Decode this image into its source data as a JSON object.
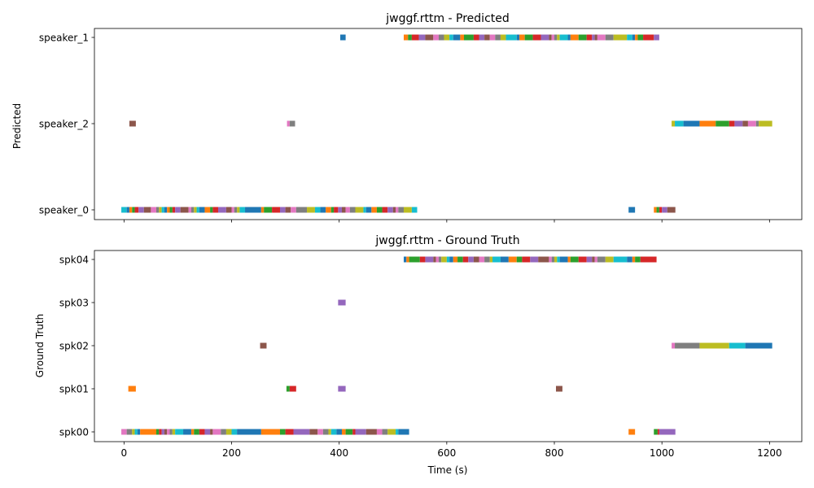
{
  "palette": [
    "#1f77b4",
    "#ff7f0e",
    "#2ca02c",
    "#d62728",
    "#9467bd",
    "#8c564b",
    "#e377c2",
    "#7f7f7f",
    "#bcbd22",
    "#17becf"
  ],
  "chart_data": [
    {
      "type": "timeline",
      "title": "jwggf.rttm - Predicted",
      "xlabel": "",
      "ylabel": "Predicted",
      "xlim": [
        -55,
        1260
      ],
      "xticks": [
        0,
        200,
        400,
        600,
        800,
        1000,
        1200
      ],
      "show_xtick_labels": false,
      "categories": [
        "speaker_0",
        "speaker_2",
        "speaker_1"
      ],
      "segments": [
        {
          "row": "speaker_1",
          "spans": [
            [
              402,
              412
            ],
            [
              520,
              528
            ],
            [
              528,
              535
            ],
            [
              535,
              548
            ],
            [
              548,
              560
            ],
            [
              560,
              575
            ],
            [
              575,
              585
            ],
            [
              585,
              595
            ],
            [
              595,
              605
            ],
            [
              605,
              612
            ],
            [
              612,
              625
            ],
            [
              625,
              632
            ],
            [
              632,
              650
            ],
            [
              650,
              660
            ],
            [
              660,
              670
            ],
            [
              670,
              680
            ],
            [
              680,
              690
            ],
            [
              690,
              700
            ],
            [
              700,
              710
            ],
            [
              710,
              730
            ],
            [
              730,
              735
            ],
            [
              735,
              745
            ],
            [
              745,
              760
            ],
            [
              760,
              775
            ],
            [
              775,
              790
            ],
            [
              790,
              795
            ],
            [
              795,
              800
            ],
            [
              800,
              805
            ],
            [
              805,
              810
            ],
            [
              810,
              825
            ],
            [
              825,
              830
            ],
            [
              830,
              845
            ],
            [
              845,
              860
            ],
            [
              860,
              870
            ],
            [
              870,
              875
            ],
            [
              875,
              880
            ],
            [
              880,
              895
            ],
            [
              895,
              910
            ],
            [
              910,
              935
            ],
            [
              935,
              945
            ],
            [
              945,
              950
            ],
            [
              950,
              955
            ],
            [
              955,
              965
            ],
            [
              965,
              985
            ],
            [
              985,
              995
            ]
          ]
        },
        {
          "row": "speaker_2",
          "spans": [
            [
              10,
              22
            ],
            [
              303,
              308
            ],
            [
              308,
              318
            ],
            [
              1018,
              1024
            ],
            [
              1024,
              1040
            ],
            [
              1040,
              1070
            ],
            [
              1070,
              1100
            ],
            [
              1100,
              1125
            ],
            [
              1125,
              1135
            ],
            [
              1135,
              1150
            ],
            [
              1150,
              1160
            ],
            [
              1160,
              1175
            ],
            [
              1175,
              1180
            ],
            [
              1180,
              1205
            ]
          ]
        },
        {
          "row": "speaker_0",
          "spans": [
            [
              -5,
              5
            ],
            [
              5,
              10
            ],
            [
              10,
              15
            ],
            [
              15,
              20
            ],
            [
              20,
              27
            ],
            [
              27,
              37
            ],
            [
              37,
              50
            ],
            [
              50,
              60
            ],
            [
              60,
              65
            ],
            [
              65,
              70
            ],
            [
              70,
              75
            ],
            [
              75,
              80
            ],
            [
              80,
              85
            ],
            [
              85,
              90
            ],
            [
              90,
              95
            ],
            [
              95,
              105
            ],
            [
              105,
              120
            ],
            [
              120,
              125
            ],
            [
              125,
              130
            ],
            [
              130,
              135
            ],
            [
              135,
              140
            ],
            [
              140,
              150
            ],
            [
              150,
              160
            ],
            [
              160,
              165
            ],
            [
              165,
              175
            ],
            [
              175,
              190
            ],
            [
              190,
              200
            ],
            [
              200,
              205
            ],
            [
              205,
              210
            ],
            [
              210,
              215
            ],
            [
              215,
              225
            ],
            [
              225,
              255
            ],
            [
              255,
              260
            ],
            [
              260,
              275
            ],
            [
              275,
              290
            ],
            [
              290,
              300
            ],
            [
              300,
              310
            ],
            [
              310,
              320
            ],
            [
              320,
              340
            ],
            [
              340,
              355
            ],
            [
              355,
              365
            ],
            [
              365,
              375
            ],
            [
              375,
              385
            ],
            [
              385,
              390
            ],
            [
              390,
              398
            ],
            [
              398,
              405
            ],
            [
              405,
              412
            ],
            [
              412,
              420
            ],
            [
              420,
              430
            ],
            [
              430,
              445
            ],
            [
              445,
              450
            ],
            [
              450,
              460
            ],
            [
              460,
              470
            ],
            [
              470,
              480
            ],
            [
              480,
              490
            ],
            [
              490,
              500
            ],
            [
              500,
              505
            ],
            [
              505,
              510
            ],
            [
              510,
              520
            ],
            [
              520,
              535
            ],
            [
              535,
              545
            ],
            [
              938,
              950
            ],
            [
              985,
              990
            ],
            [
              990,
              995
            ],
            [
              995,
              1000
            ],
            [
              1000,
              1010
            ],
            [
              1010,
              1025
            ]
          ]
        }
      ]
    },
    {
      "type": "timeline",
      "title": "jwggf.rttm - Ground Truth",
      "xlabel": "Time (s)",
      "ylabel": "Ground Truth",
      "xlim": [
        -55,
        1260
      ],
      "xticks": [
        0,
        200,
        400,
        600,
        800,
        1000,
        1200
      ],
      "show_xtick_labels": true,
      "categories": [
        "spk00",
        "spk01",
        "spk02",
        "spk03",
        "spk04"
      ],
      "segments": [
        {
          "row": "spk04",
          "spans": [
            [
              520,
              525
            ],
            [
              525,
              530
            ],
            [
              530,
              550
            ],
            [
              550,
              560
            ],
            [
              560,
              575
            ],
            [
              575,
              580
            ],
            [
              580,
              585
            ],
            [
              585,
              590
            ],
            [
              590,
              600
            ],
            [
              600,
              605
            ],
            [
              605,
              612
            ],
            [
              612,
              620
            ],
            [
              620,
              630
            ],
            [
              630,
              640
            ],
            [
              640,
              650
            ],
            [
              650,
              660
            ],
            [
              660,
              670
            ],
            [
              670,
              680
            ],
            [
              680,
              685
            ],
            [
              685,
              700
            ],
            [
              700,
              715
            ],
            [
              715,
              730
            ],
            [
              730,
              740
            ],
            [
              740,
              755
            ],
            [
              755,
              770
            ],
            [
              770,
              790
            ],
            [
              790,
              795
            ],
            [
              795,
              800
            ],
            [
              800,
              805
            ],
            [
              805,
              810
            ],
            [
              810,
              825
            ],
            [
              825,
              830
            ],
            [
              830,
              845
            ],
            [
              845,
              860
            ],
            [
              860,
              870
            ],
            [
              870,
              875
            ],
            [
              875,
              880
            ],
            [
              880,
              895
            ],
            [
              895,
              910
            ],
            [
              910,
              935
            ],
            [
              935,
              945
            ],
            [
              945,
              950
            ],
            [
              950,
              960
            ],
            [
              960,
              990
            ]
          ]
        },
        {
          "row": "spk03",
          "spans": [
            [
              398,
              412
            ]
          ]
        },
        {
          "row": "spk02",
          "spans": [
            [
              253,
              265
            ],
            [
              1018,
              1024
            ],
            [
              1024,
              1070
            ],
            [
              1070,
              1125
            ],
            [
              1125,
              1155
            ],
            [
              1155,
              1205
            ]
          ]
        },
        {
          "row": "spk01",
          "spans": [
            [
              8,
              22
            ],
            [
              302,
              308
            ],
            [
              308,
              320
            ],
            [
              398,
              412
            ],
            [
              803,
              815
            ]
          ]
        },
        {
          "row": "spk00",
          "spans": [
            [
              -5,
              5
            ],
            [
              5,
              15
            ],
            [
              15,
              20
            ],
            [
              20,
              25
            ],
            [
              25,
              30
            ],
            [
              30,
              60
            ],
            [
              60,
              65
            ],
            [
              65,
              70
            ],
            [
              70,
              75
            ],
            [
              75,
              80
            ],
            [
              80,
              85
            ],
            [
              85,
              90
            ],
            [
              90,
              95
            ],
            [
              95,
              110
            ],
            [
              110,
              125
            ],
            [
              125,
              130
            ],
            [
              130,
              140
            ],
            [
              140,
              150
            ],
            [
              150,
              160
            ],
            [
              160,
              165
            ],
            [
              165,
              180
            ],
            [
              180,
              190
            ],
            [
              190,
              200
            ],
            [
              200,
              210
            ],
            [
              210,
              255
            ],
            [
              255,
              290
            ],
            [
              290,
              300
            ],
            [
              300,
              315
            ],
            [
              315,
              345
            ],
            [
              345,
              360
            ],
            [
              360,
              370
            ],
            [
              370,
              380
            ],
            [
              380,
              385
            ],
            [
              385,
              395
            ],
            [
              395,
              405
            ],
            [
              405,
              412
            ],
            [
              412,
              425
            ],
            [
              425,
              430
            ],
            [
              430,
              450
            ],
            [
              450,
              470
            ],
            [
              470,
              480
            ],
            [
              480,
              490
            ],
            [
              490,
              505
            ],
            [
              505,
              510
            ],
            [
              510,
              530
            ],
            [
              938,
              950
            ],
            [
              985,
              992
            ],
            [
              992,
              995
            ],
            [
              995,
              1025
            ]
          ]
        }
      ]
    }
  ]
}
